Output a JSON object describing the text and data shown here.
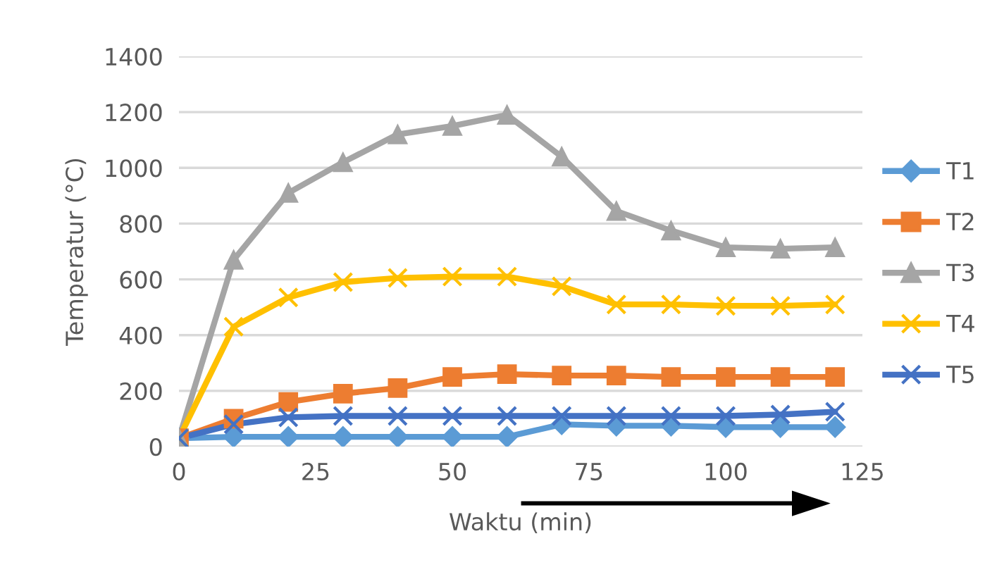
{
  "chart_data": {
    "type": "line",
    "xlabel": "Waktu (min)",
    "ylabel": "Temperatur (°C)",
    "x": [
      0,
      10,
      20,
      30,
      40,
      50,
      60,
      70,
      80,
      90,
      100,
      110,
      120
    ],
    "xlim": [
      0,
      125
    ],
    "xticks": [
      0,
      25,
      50,
      75,
      100,
      125
    ],
    "ylim": [
      0,
      1400
    ],
    "yticks": [
      0,
      200,
      400,
      600,
      800,
      1000,
      1200,
      1400
    ],
    "grid": "y",
    "legend": "right",
    "series": [
      {
        "name": "T1",
        "color": "#5b9bd5",
        "marker": "diamond",
        "values": [
          30,
          35,
          35,
          35,
          35,
          35,
          35,
          80,
          75,
          75,
          70,
          70,
          70
        ]
      },
      {
        "name": "T2",
        "color": "#ed7d31",
        "marker": "square",
        "values": [
          30,
          100,
          160,
          190,
          210,
          250,
          260,
          255,
          255,
          250,
          250,
          250,
          250
        ]
      },
      {
        "name": "T3",
        "color": "#a5a5a5",
        "marker": "triangle",
        "values": [
          30,
          670,
          910,
          1020,
          1120,
          1150,
          1190,
          1040,
          845,
          775,
          715,
          710,
          715
        ]
      },
      {
        "name": "T4",
        "color": "#ffc000",
        "marker": "cross",
        "values": [
          30,
          430,
          535,
          590,
          605,
          610,
          610,
          575,
          510,
          510,
          505,
          505,
          510
        ]
      },
      {
        "name": "T5",
        "color": "#4472c4",
        "marker": "cross",
        "values": [
          30,
          80,
          105,
          110,
          110,
          110,
          110,
          110,
          110,
          110,
          110,
          115,
          125
        ]
      }
    ]
  }
}
